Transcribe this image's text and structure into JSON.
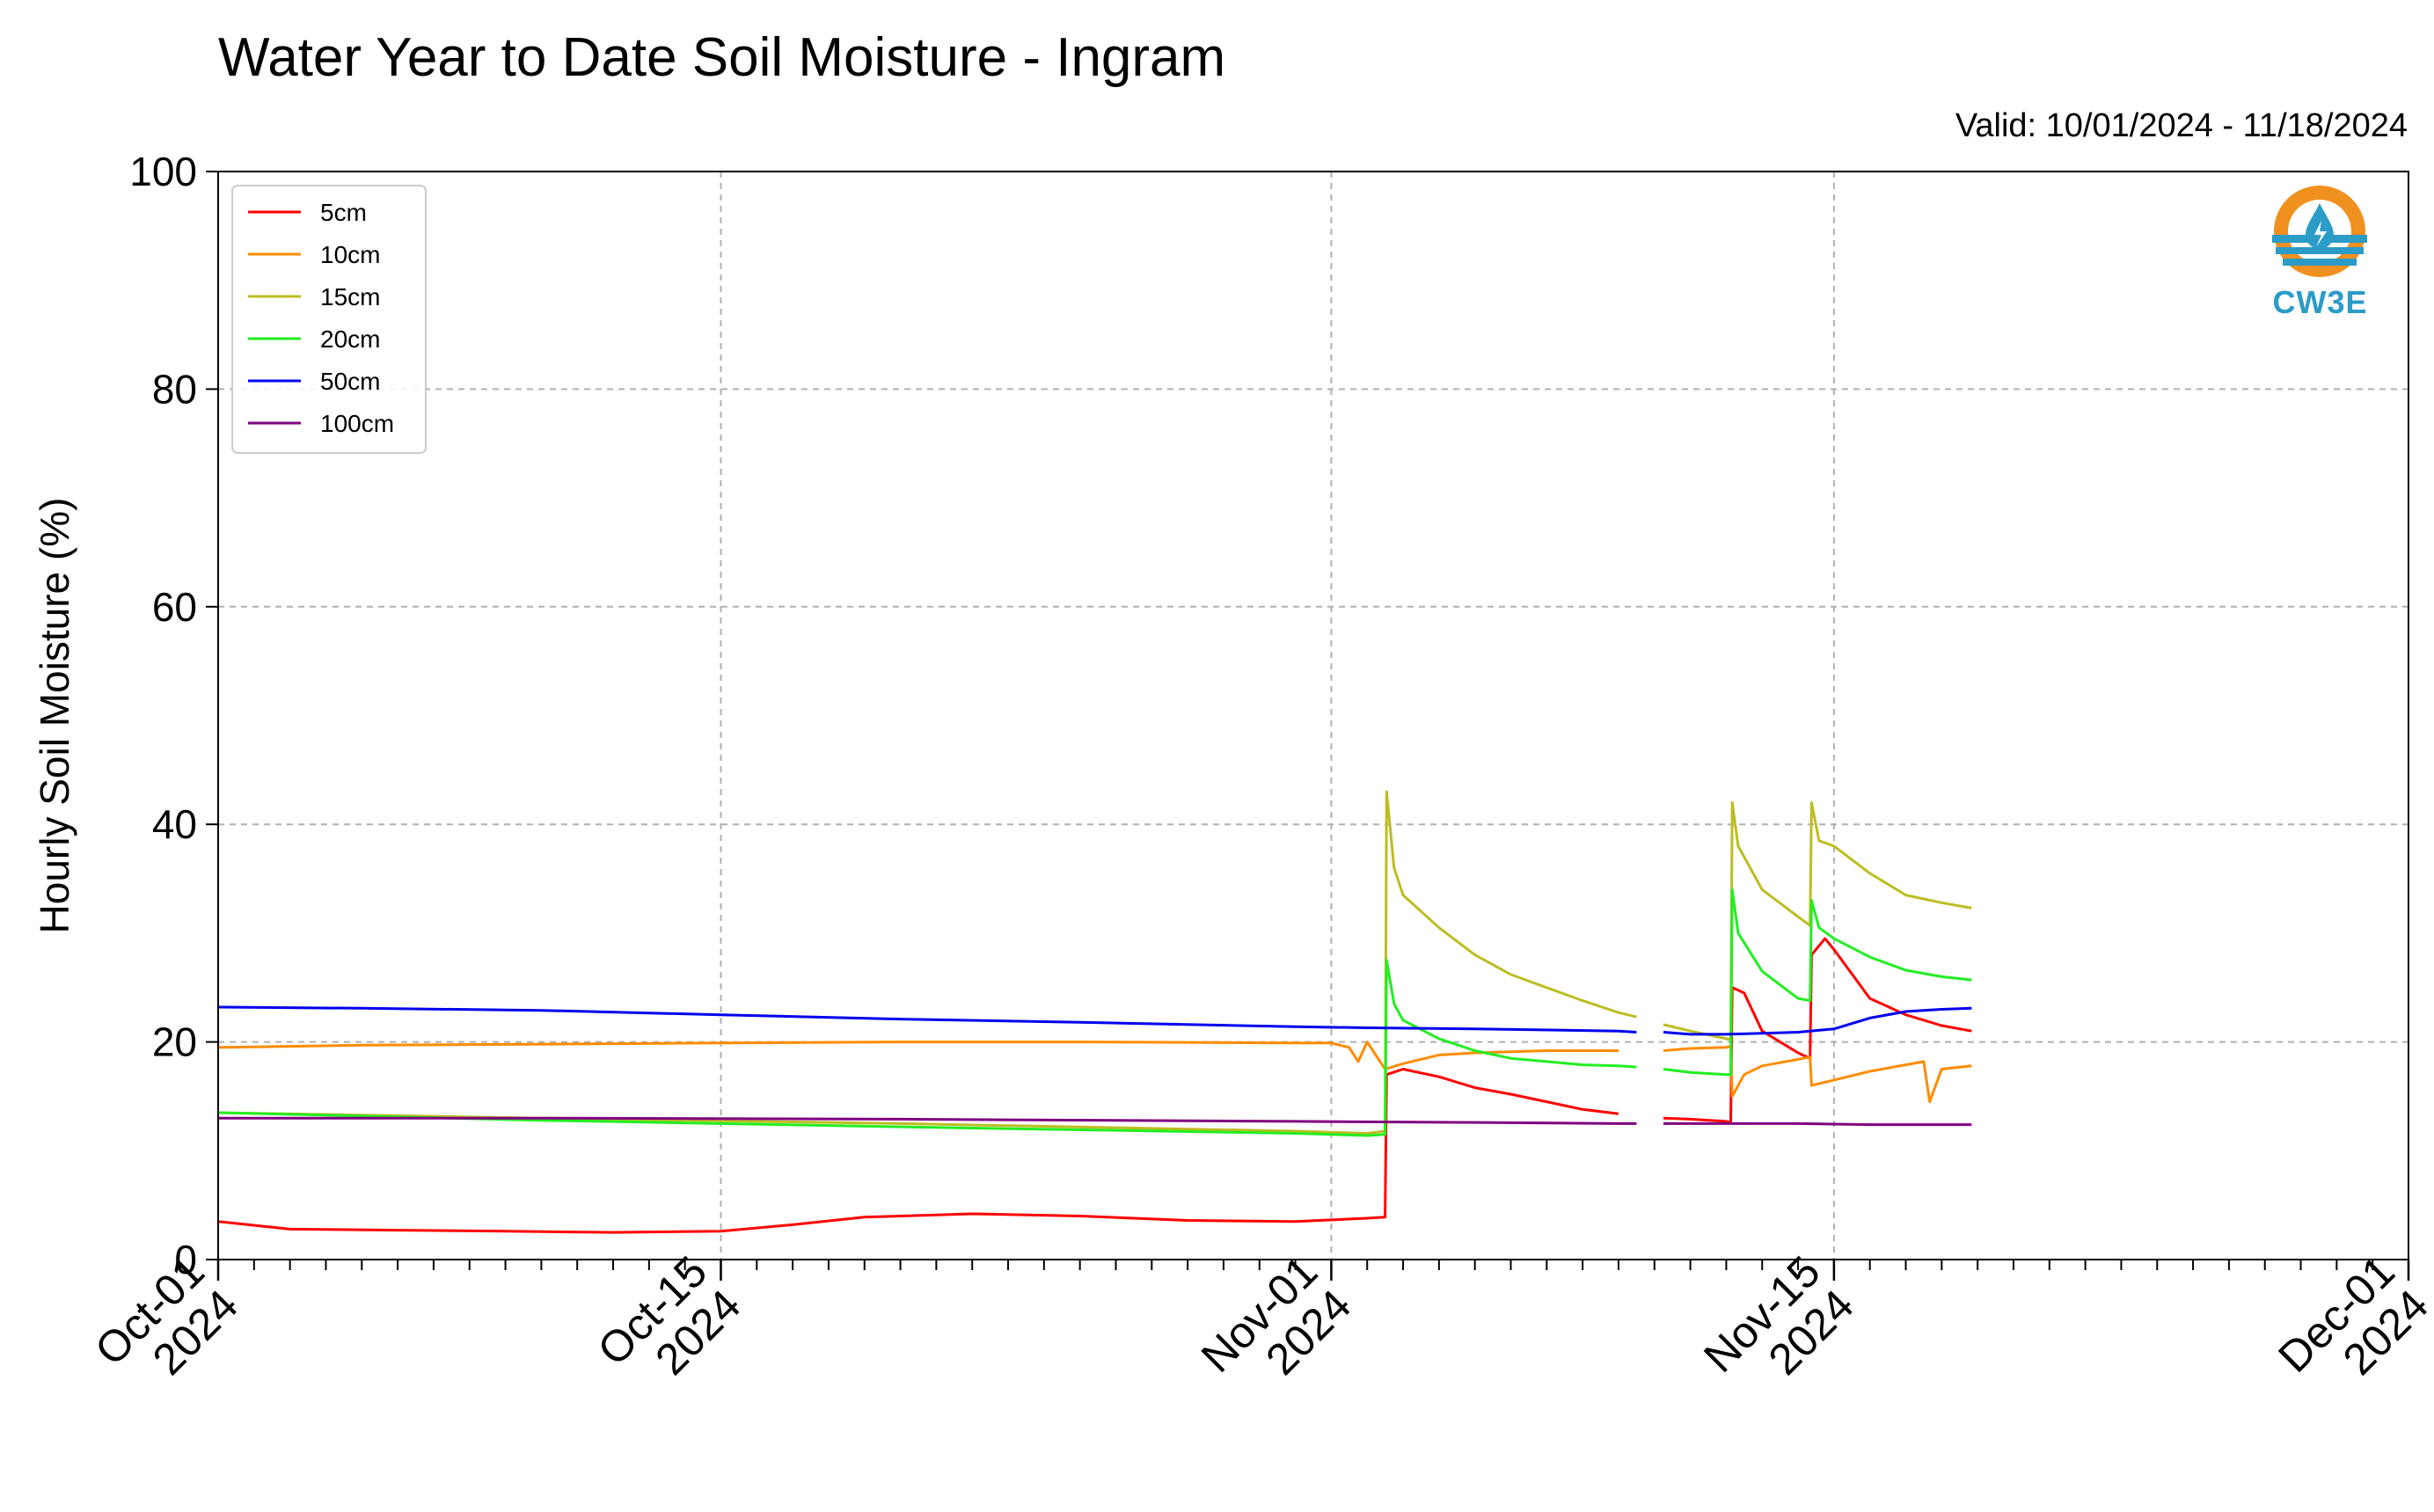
{
  "header": {
    "title": "Water Year to Date Soil Moisture - Ingram",
    "valid": "Valid: 10/01/2024 - 11/18/2024"
  },
  "logo": {
    "text": "CW3E",
    "icon": "water-drop-logo-icon"
  },
  "chart_data": {
    "type": "line",
    "title": "Water Year to Date Soil Moisture - Ingram",
    "ylabel": "Hourly Soil Moisture (%)",
    "xlabel": "",
    "xlim": [
      "2024-10-01",
      "2024-12-01"
    ],
    "ylim": [
      0,
      100
    ],
    "yticks": [
      0,
      20,
      40,
      60,
      80,
      100
    ],
    "xticks": [
      {
        "date": "2024-10-01",
        "label": [
          "Oct-01",
          "2024"
        ]
      },
      {
        "date": "2024-10-15",
        "label": [
          "Oct-15",
          "2024"
        ]
      },
      {
        "date": "2024-11-01",
        "label": [
          "Nov-01",
          "2024"
        ]
      },
      {
        "date": "2024-11-15",
        "label": [
          "Nov-15",
          "2024"
        ]
      },
      {
        "date": "2024-12-01",
        "label": [
          "Dec-01",
          "2024"
        ]
      }
    ],
    "grid": true,
    "legend_position": "top-left",
    "series": [
      {
        "name": "5cm",
        "color": "#ff0000",
        "segments": [
          [
            [
              "2024-10-01",
              3.5
            ],
            [
              "2024-10-03",
              2.8
            ],
            [
              "2024-10-06",
              2.7
            ],
            [
              "2024-10-09",
              2.6
            ],
            [
              "2024-10-12",
              2.5
            ],
            [
              "2024-10-15",
              2.6
            ],
            [
              "2024-10-17",
              3.2
            ],
            [
              "2024-10-19",
              3.9
            ],
            [
              "2024-10-22",
              4.2
            ],
            [
              "2024-10-25",
              4.0
            ],
            [
              "2024-10-28",
              3.6
            ],
            [
              "2024-10-31",
              3.5
            ],
            [
              "2024-11-02",
              3.8
            ],
            [
              "2024-11-02T12:00",
              3.9
            ],
            [
              "2024-11-02T13:00",
              17.0
            ],
            [
              "2024-11-03",
              17.5
            ],
            [
              "2024-11-04",
              16.8
            ],
            [
              "2024-11-05",
              15.8
            ],
            [
              "2024-11-06",
              15.2
            ],
            [
              "2024-11-07",
              14.5
            ],
            [
              "2024-11-08",
              13.8
            ],
            [
              "2024-11-09",
              13.4
            ]
          ],
          [
            [
              "2024-11-10T06:00",
              13.0
            ],
            [
              "2024-11-11",
              12.9
            ],
            [
              "2024-11-12",
              12.7
            ],
            [
              "2024-11-12T03:00",
              12.6
            ],
            [
              "2024-11-12T04:00",
              25.0
            ],
            [
              "2024-11-12T12:00",
              24.5
            ],
            [
              "2024-11-13",
              21.0
            ],
            [
              "2024-11-14",
              19.0
            ],
            [
              "2024-11-14T08:00",
              18.5
            ],
            [
              "2024-11-14T09:00",
              28.0
            ],
            [
              "2024-11-14T18:00",
              29.5
            ],
            [
              "2024-11-15",
              28.5
            ],
            [
              "2024-11-16",
              24.0
            ],
            [
              "2024-11-17",
              22.5
            ],
            [
              "2024-11-18",
              21.5
            ],
            [
              "2024-11-18T20:00",
              21.0
            ]
          ]
        ]
      },
      {
        "name": "10cm",
        "color": "#ff8c00",
        "segments": [
          [
            [
              "2024-10-01",
              19.5
            ],
            [
              "2024-10-05",
              19.7
            ],
            [
              "2024-10-10",
              19.8
            ],
            [
              "2024-10-15",
              19.9
            ],
            [
              "2024-10-20",
              20.0
            ],
            [
              "2024-10-25",
              20.0
            ],
            [
              "2024-10-31",
              19.9
            ],
            [
              "2024-11-01",
              19.9
            ],
            [
              "2024-11-01T12:00",
              19.5
            ],
            [
              "2024-11-01T18:00",
              18.2
            ],
            [
              "2024-11-02",
              20.0
            ],
            [
              "2024-11-02T12:00",
              17.5
            ],
            [
              "2024-11-03",
              18.0
            ],
            [
              "2024-11-04",
              18.8
            ],
            [
              "2024-11-05",
              19.0
            ],
            [
              "2024-11-06",
              19.1
            ],
            [
              "2024-11-07",
              19.2
            ],
            [
              "2024-11-08",
              19.2
            ],
            [
              "2024-11-09",
              19.2
            ]
          ],
          [
            [
              "2024-11-10T06:00",
              19.2
            ],
            [
              "2024-11-11",
              19.4
            ],
            [
              "2024-11-12",
              19.5
            ],
            [
              "2024-11-12T03:00",
              19.6
            ],
            [
              "2024-11-12T04:00",
              15.0
            ],
            [
              "2024-11-12T12:00",
              17.0
            ],
            [
              "2024-11-13",
              17.8
            ],
            [
              "2024-11-14",
              18.4
            ],
            [
              "2024-11-14T08:00",
              18.6
            ],
            [
              "2024-11-14T09:00",
              16.0
            ],
            [
              "2024-11-15",
              16.5
            ],
            [
              "2024-11-16",
              17.3
            ],
            [
              "2024-11-17",
              17.9
            ],
            [
              "2024-11-17T12:00",
              18.2
            ],
            [
              "2024-11-17T16:00",
              14.5
            ],
            [
              "2024-11-18",
              17.5
            ],
            [
              "2024-11-18T20:00",
              17.8
            ]
          ]
        ]
      },
      {
        "name": "15cm",
        "color": "#bcbd22",
        "segments": [
          [
            [
              "2024-10-01",
              13.5
            ],
            [
              "2024-10-10",
              13.0
            ],
            [
              "2024-10-20",
              12.5
            ],
            [
              "2024-10-31",
              11.8
            ],
            [
              "2024-11-02",
              11.6
            ],
            [
              "2024-11-02T12:00",
              11.8
            ],
            [
              "2024-11-02T13:00",
              43.0
            ],
            [
              "2024-11-02T18:00",
              36.0
            ],
            [
              "2024-11-03",
              33.5
            ],
            [
              "2024-11-04",
              30.5
            ],
            [
              "2024-11-05",
              28.0
            ],
            [
              "2024-11-06",
              26.2
            ],
            [
              "2024-11-07",
              25.0
            ],
            [
              "2024-11-08",
              23.8
            ],
            [
              "2024-11-09",
              22.7
            ],
            [
              "2024-11-09T12:00",
              22.3
            ]
          ],
          [
            [
              "2024-11-10T06:00",
              21.6
            ],
            [
              "2024-11-11",
              21.0
            ],
            [
              "2024-11-12",
              20.3
            ],
            [
              "2024-11-12T03:00",
              20.2
            ],
            [
              "2024-11-12T04:00",
              42.0
            ],
            [
              "2024-11-12T08:00",
              38.0
            ],
            [
              "2024-11-13",
              34.0
            ],
            [
              "2024-11-14",
              31.5
            ],
            [
              "2024-11-14T08:00",
              30.7
            ],
            [
              "2024-11-14T09:00",
              42.0
            ],
            [
              "2024-11-14T14:00",
              38.5
            ],
            [
              "2024-11-15",
              38.0
            ],
            [
              "2024-11-16",
              35.5
            ],
            [
              "2024-11-17",
              33.5
            ],
            [
              "2024-11-18",
              32.8
            ],
            [
              "2024-11-18T20:00",
              32.3
            ]
          ]
        ]
      },
      {
        "name": "20cm",
        "color": "#22ee22",
        "segments": [
          [
            [
              "2024-10-01",
              13.5
            ],
            [
              "2024-10-10",
              12.8
            ],
            [
              "2024-10-20",
              12.2
            ],
            [
              "2024-10-31",
              11.6
            ],
            [
              "2024-11-02",
              11.4
            ],
            [
              "2024-11-02T12:00",
              11.5
            ],
            [
              "2024-11-02T13:00",
              27.5
            ],
            [
              "2024-11-02T18:00",
              23.5
            ],
            [
              "2024-11-03",
              22.0
            ],
            [
              "2024-11-04",
              20.3
            ],
            [
              "2024-11-05",
              19.2
            ],
            [
              "2024-11-06",
              18.5
            ],
            [
              "2024-11-07",
              18.2
            ],
            [
              "2024-11-08",
              17.9
            ],
            [
              "2024-11-09",
              17.8
            ],
            [
              "2024-11-09T12:00",
              17.7
            ]
          ],
          [
            [
              "2024-11-10T06:00",
              17.5
            ],
            [
              "2024-11-11",
              17.2
            ],
            [
              "2024-11-12",
              17.0
            ],
            [
              "2024-11-12T03:00",
              17.0
            ],
            [
              "2024-11-12T04:00",
              34.0
            ],
            [
              "2024-11-12T08:00",
              30.0
            ],
            [
              "2024-11-13",
              26.5
            ],
            [
              "2024-11-14",
              24.0
            ],
            [
              "2024-11-14T08:00",
              23.8
            ],
            [
              "2024-11-14T09:00",
              33.0
            ],
            [
              "2024-11-14T14:00",
              30.5
            ],
            [
              "2024-11-15",
              29.5
            ],
            [
              "2024-11-16",
              27.8
            ],
            [
              "2024-11-17",
              26.6
            ],
            [
              "2024-11-18",
              26.0
            ],
            [
              "2024-11-18T20:00",
              25.7
            ]
          ]
        ]
      },
      {
        "name": "50cm",
        "color": "#0000ee",
        "segments": [
          [
            [
              "2024-10-01",
              23.2
            ],
            [
              "2024-10-05",
              23.1
            ],
            [
              "2024-10-10",
              22.9
            ],
            [
              "2024-10-15",
              22.5
            ],
            [
              "2024-10-20",
              22.1
            ],
            [
              "2024-10-25",
              21.8
            ],
            [
              "2024-10-31",
              21.4
            ],
            [
              "2024-11-02",
              21.3
            ],
            [
              "2024-11-05",
              21.2
            ],
            [
              "2024-11-09",
              21.0
            ],
            [
              "2024-11-09T12:00",
              20.9
            ]
          ],
          [
            [
              "2024-11-10T06:00",
              20.9
            ],
            [
              "2024-11-11",
              20.7
            ],
            [
              "2024-11-12",
              20.7
            ],
            [
              "2024-11-13",
              20.8
            ],
            [
              "2024-11-14",
              20.9
            ],
            [
              "2024-11-15",
              21.2
            ],
            [
              "2024-11-16",
              22.2
            ],
            [
              "2024-11-17",
              22.8
            ],
            [
              "2024-11-18",
              23.0
            ],
            [
              "2024-11-18T20:00",
              23.1
            ]
          ]
        ]
      },
      {
        "name": "100cm",
        "color": "#800080",
        "segments": [
          [
            [
              "2024-10-01",
              13.0
            ],
            [
              "2024-10-10",
              13.0
            ],
            [
              "2024-10-20",
              12.9
            ],
            [
              "2024-10-31",
              12.7
            ],
            [
              "2024-11-05",
              12.6
            ],
            [
              "2024-11-09",
              12.5
            ],
            [
              "2024-11-09T12:00",
              12.5
            ]
          ],
          [
            [
              "2024-11-10T06:00",
              12.5
            ],
            [
              "2024-11-12",
              12.5
            ],
            [
              "2024-11-14",
              12.5
            ],
            [
              "2024-11-16",
              12.4
            ],
            [
              "2024-11-18T20:00",
              12.4
            ]
          ]
        ]
      }
    ]
  }
}
